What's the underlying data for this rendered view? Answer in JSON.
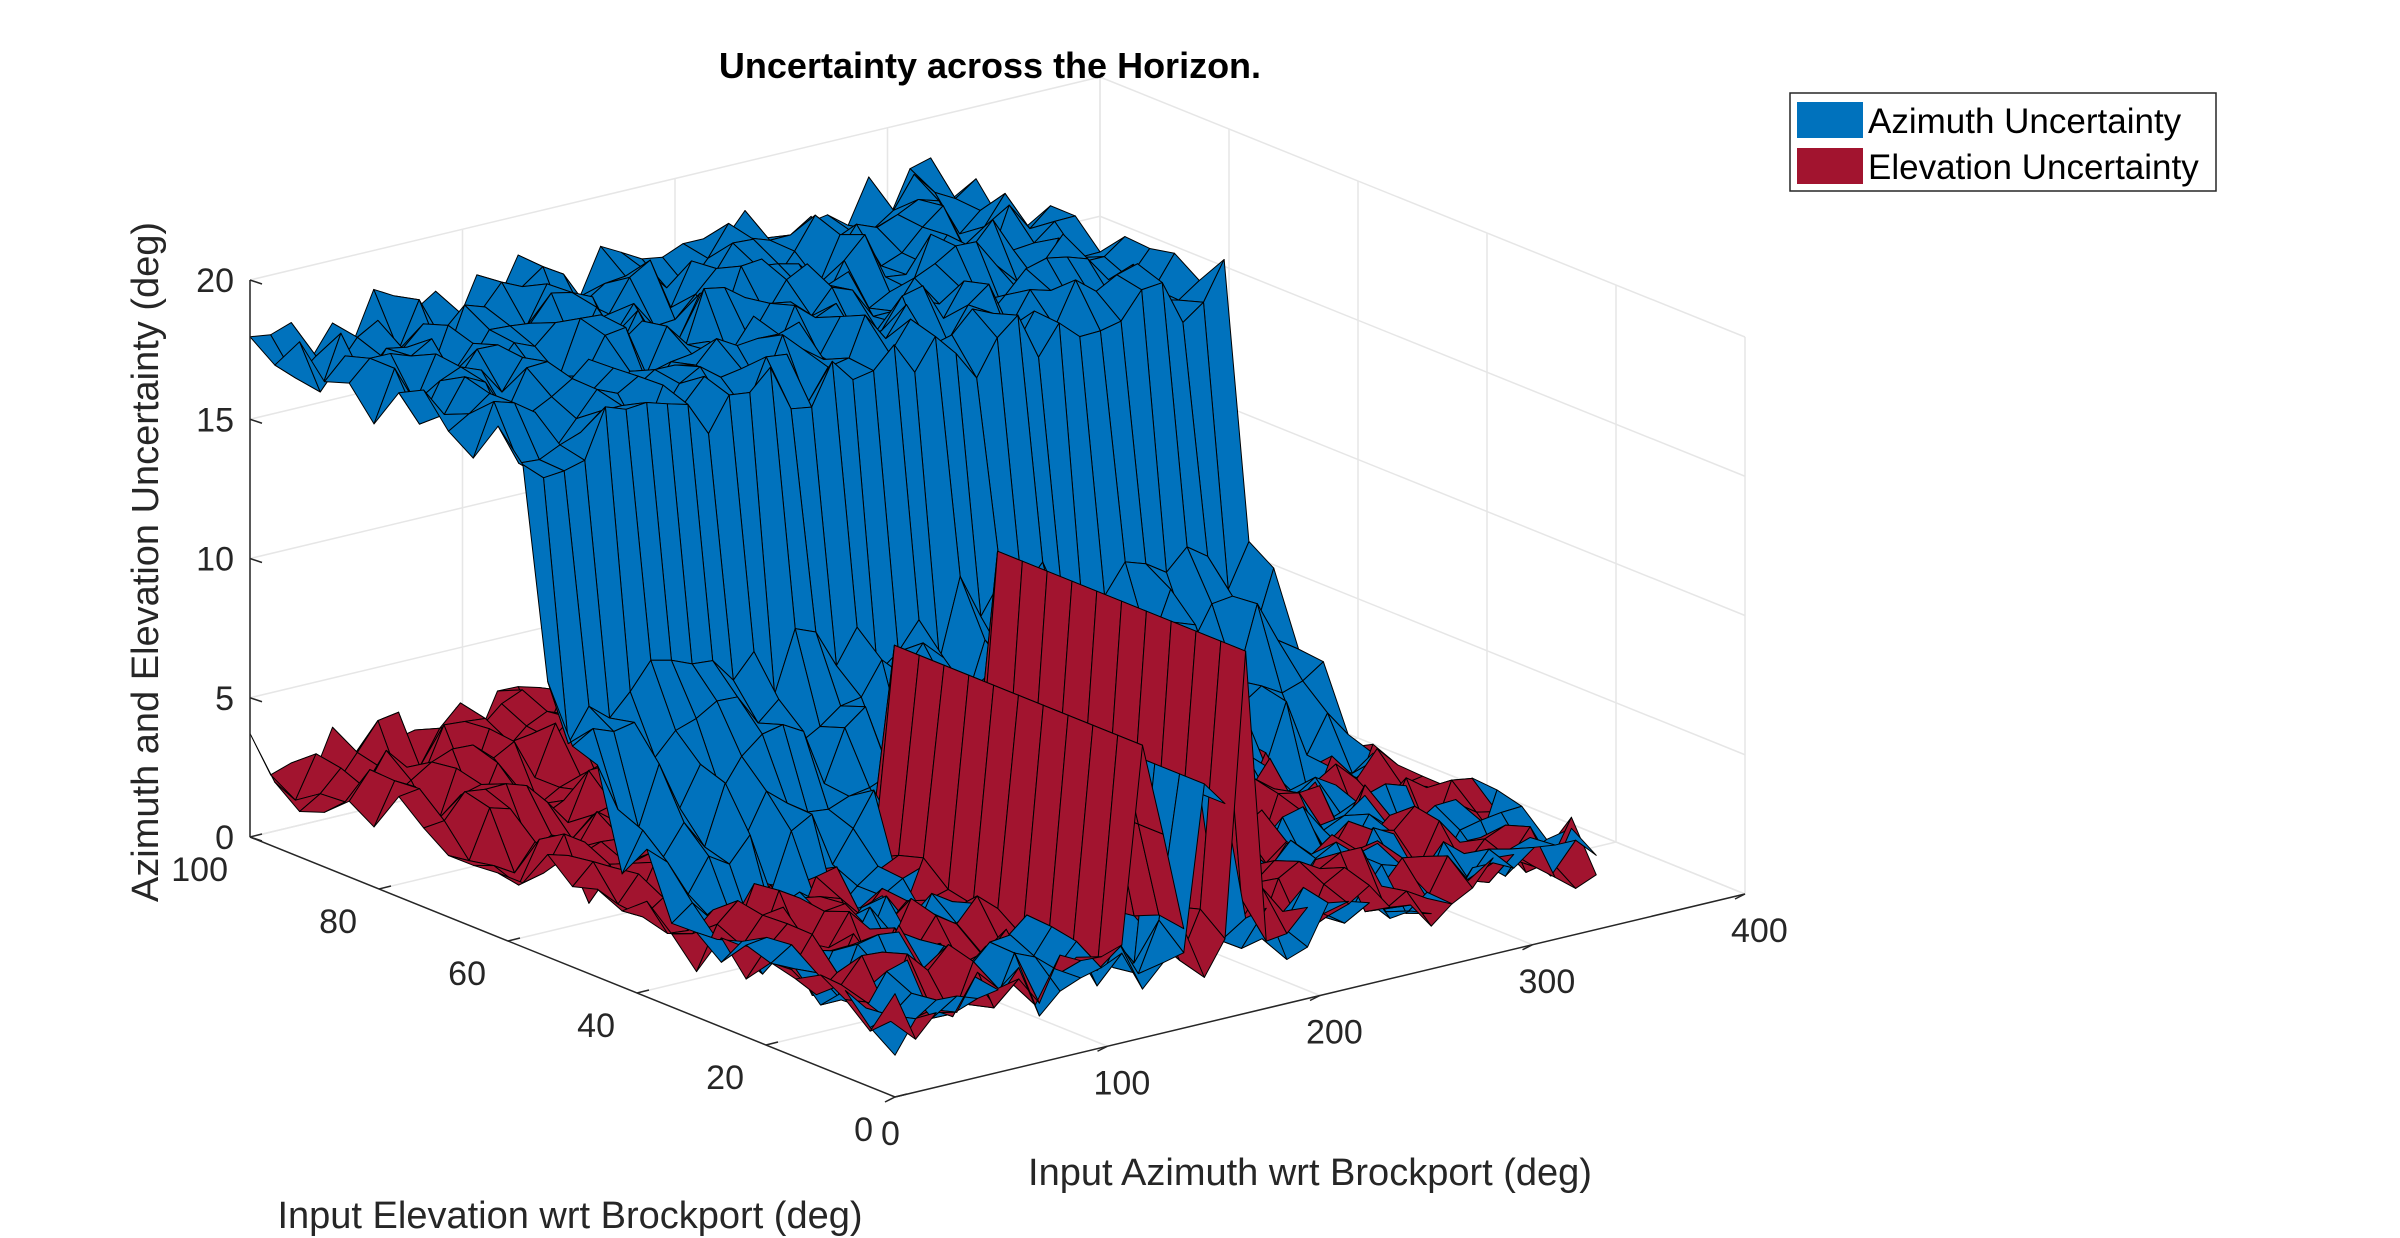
{
  "chart_data": {
    "type": "surface3d",
    "title": "Uncertainty across the Horizon.",
    "xlabel": "Input Azimuth wrt Brockport (deg)",
    "ylabel": "Input Elevation wrt Brockport (deg)",
    "zlabel": "Azimuth and Elevation Uncertainty (deg)",
    "xlim": [
      0,
      400
    ],
    "ylim": [
      0,
      100
    ],
    "zlim": [
      0,
      20
    ],
    "x_ticks": [
      "0",
      "100",
      "200",
      "300",
      "400"
    ],
    "y_ticks": [
      "0",
      "20",
      "40",
      "60",
      "80",
      "100"
    ],
    "z_ticks": [
      "0",
      "5",
      "10",
      "15",
      "20"
    ],
    "grid": true,
    "legend_position": "top-right",
    "series": [
      {
        "name": "Azimuth Uncertainty",
        "color": "#0072BD",
        "x_range": [
          0,
          330
        ],
        "y_range": [
          0,
          100
        ],
        "description_values": {
          "high_band_elevation_deg": [
            55,
            100
          ],
          "high_band_value_deg": 18,
          "low_region_value_deg": 1.5,
          "spike_azimuth_deg": 150,
          "spike_value_deg": 12
        }
      },
      {
        "name": "Elevation Uncertainty",
        "color": "#A2142F",
        "x_range": [
          0,
          330
        ],
        "y_range": [
          0,
          100
        ],
        "description_values": {
          "base_value_deg": 1.5,
          "spike_azimuths_deg": [
            120,
            165
          ],
          "spike_values_deg": [
            14,
            12
          ]
        }
      }
    ]
  }
}
